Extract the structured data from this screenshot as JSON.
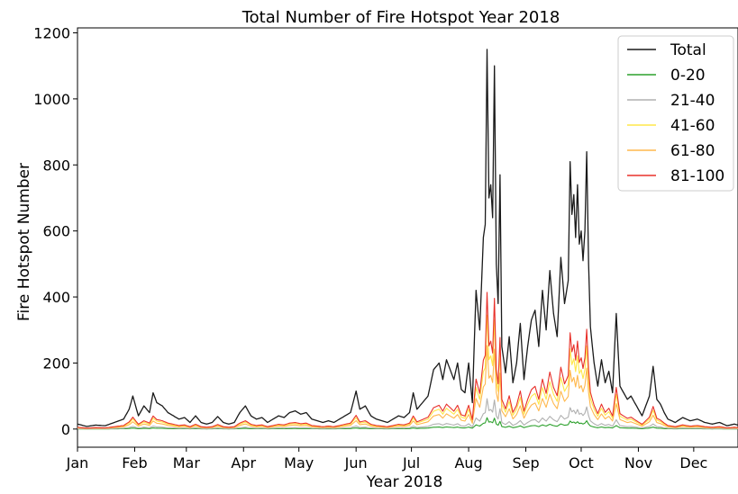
{
  "chart_data": {
    "type": "line",
    "title": "Total Number of Fire Hotspot Year 2018",
    "xlabel": "Year 2018",
    "ylabel": "Fire Hotspot Number",
    "ylim": [
      -55,
      1215
    ],
    "xlim": [
      0,
      358
    ],
    "y_ticks": [
      0,
      200,
      400,
      600,
      800,
      1000,
      1200
    ],
    "x_ticks": [
      {
        "label": "Jan",
        "day": 0
      },
      {
        "label": "Feb",
        "day": 31
      },
      {
        "label": "Mar",
        "day": 59
      },
      {
        "label": "Apr",
        "day": 90
      },
      {
        "label": "May",
        "day": 120
      },
      {
        "label": "Jun",
        "day": 151
      },
      {
        "label": "Jul",
        "day": 181
      },
      {
        "label": "Aug",
        "day": 212
      },
      {
        "label": "Sep",
        "day": 243
      },
      {
        "label": "Oct",
        "day": 273
      },
      {
        "label": "Nov",
        "day": 304
      },
      {
        "label": "Dec",
        "day": 334
      }
    ],
    "grid": false,
    "legend_position": "top-right",
    "series": [
      {
        "name": "Total",
        "color": "#1a1a1a",
        "width": 1.3,
        "ratio": 1.0
      },
      {
        "name": "0-20",
        "color": "#2ca02c",
        "width": 1.1,
        "ratio": 0.03
      },
      {
        "name": "21-40",
        "color": "#b0b0b0",
        "width": 1.1,
        "ratio": 0.08
      },
      {
        "name": "41-60",
        "color": "#ffe74a",
        "width": 1.1,
        "ratio": 0.3
      },
      {
        "name": "61-80",
        "color": "#ffb84d",
        "width": 1.1,
        "ratio": 0.22
      },
      {
        "name": "81-100",
        "color": "#e8302a",
        "width": 1.1,
        "ratio": 0.36
      }
    ],
    "total_keypoints": [
      [
        0,
        15
      ],
      [
        5,
        8
      ],
      [
        10,
        12
      ],
      [
        15,
        10
      ],
      [
        20,
        20
      ],
      [
        25,
        30
      ],
      [
        28,
        60
      ],
      [
        30,
        100
      ],
      [
        33,
        40
      ],
      [
        36,
        70
      ],
      [
        39,
        50
      ],
      [
        41,
        110
      ],
      [
        43,
        80
      ],
      [
        46,
        70
      ],
      [
        49,
        50
      ],
      [
        52,
        40
      ],
      [
        55,
        30
      ],
      [
        58,
        35
      ],
      [
        61,
        20
      ],
      [
        64,
        40
      ],
      [
        67,
        20
      ],
      [
        70,
        15
      ],
      [
        73,
        20
      ],
      [
        76,
        38
      ],
      [
        79,
        20
      ],
      [
        82,
        15
      ],
      [
        85,
        20
      ],
      [
        88,
        50
      ],
      [
        91,
        70
      ],
      [
        94,
        40
      ],
      [
        97,
        30
      ],
      [
        100,
        35
      ],
      [
        103,
        20
      ],
      [
        106,
        30
      ],
      [
        109,
        40
      ],
      [
        112,
        35
      ],
      [
        115,
        50
      ],
      [
        118,
        55
      ],
      [
        121,
        45
      ],
      [
        124,
        50
      ],
      [
        127,
        30
      ],
      [
        130,
        25
      ],
      [
        133,
        20
      ],
      [
        136,
        25
      ],
      [
        139,
        20
      ],
      [
        142,
        30
      ],
      [
        145,
        40
      ],
      [
        148,
        50
      ],
      [
        151,
        115
      ],
      [
        153,
        60
      ],
      [
        156,
        70
      ],
      [
        159,
        40
      ],
      [
        162,
        30
      ],
      [
        165,
        25
      ],
      [
        168,
        20
      ],
      [
        171,
        30
      ],
      [
        174,
        40
      ],
      [
        177,
        35
      ],
      [
        180,
        50
      ],
      [
        182,
        110
      ],
      [
        184,
        60
      ],
      [
        187,
        80
      ],
      [
        190,
        100
      ],
      [
        193,
        180
      ],
      [
        196,
        200
      ],
      [
        198,
        150
      ],
      [
        200,
        210
      ],
      [
        202,
        180
      ],
      [
        204,
        150
      ],
      [
        206,
        200
      ],
      [
        208,
        120
      ],
      [
        210,
        110
      ],
      [
        212,
        200
      ],
      [
        214,
        80
      ],
      [
        216,
        420
      ],
      [
        218,
        300
      ],
      [
        220,
        580
      ],
      [
        221,
        620
      ],
      [
        222,
        1150
      ],
      [
        223,
        700
      ],
      [
        224,
        740
      ],
      [
        225,
        640
      ],
      [
        226,
        1100
      ],
      [
        227,
        500
      ],
      [
        228,
        380
      ],
      [
        229,
        770
      ],
      [
        230,
        250
      ],
      [
        232,
        170
      ],
      [
        234,
        280
      ],
      [
        236,
        140
      ],
      [
        238,
        200
      ],
      [
        240,
        320
      ],
      [
        242,
        150
      ],
      [
        244,
        250
      ],
      [
        246,
        330
      ],
      [
        248,
        360
      ],
      [
        250,
        250
      ],
      [
        252,
        420
      ],
      [
        254,
        300
      ],
      [
        256,
        480
      ],
      [
        258,
        350
      ],
      [
        260,
        280
      ],
      [
        262,
        520
      ],
      [
        264,
        380
      ],
      [
        266,
        450
      ],
      [
        267,
        810
      ],
      [
        268,
        650
      ],
      [
        269,
        710
      ],
      [
        270,
        580
      ],
      [
        271,
        740
      ],
      [
        272,
        560
      ],
      [
        273,
        600
      ],
      [
        274,
        510
      ],
      [
        275,
        600
      ],
      [
        276,
        840
      ],
      [
        277,
        500
      ],
      [
        278,
        310
      ],
      [
        280,
        200
      ],
      [
        282,
        130
      ],
      [
        284,
        210
      ],
      [
        286,
        140
      ],
      [
        288,
        175
      ],
      [
        290,
        110
      ],
      [
        292,
        350
      ],
      [
        294,
        130
      ],
      [
        296,
        110
      ],
      [
        298,
        90
      ],
      [
        300,
        100
      ],
      [
        302,
        80
      ],
      [
        304,
        60
      ],
      [
        306,
        40
      ],
      [
        308,
        70
      ],
      [
        310,
        100
      ],
      [
        312,
        190
      ],
      [
        314,
        90
      ],
      [
        316,
        75
      ],
      [
        318,
        50
      ],
      [
        320,
        30
      ],
      [
        324,
        20
      ],
      [
        328,
        35
      ],
      [
        332,
        25
      ],
      [
        336,
        30
      ],
      [
        340,
        20
      ],
      [
        344,
        15
      ],
      [
        348,
        20
      ],
      [
        352,
        10
      ],
      [
        356,
        15
      ],
      [
        358,
        12
      ]
    ]
  }
}
